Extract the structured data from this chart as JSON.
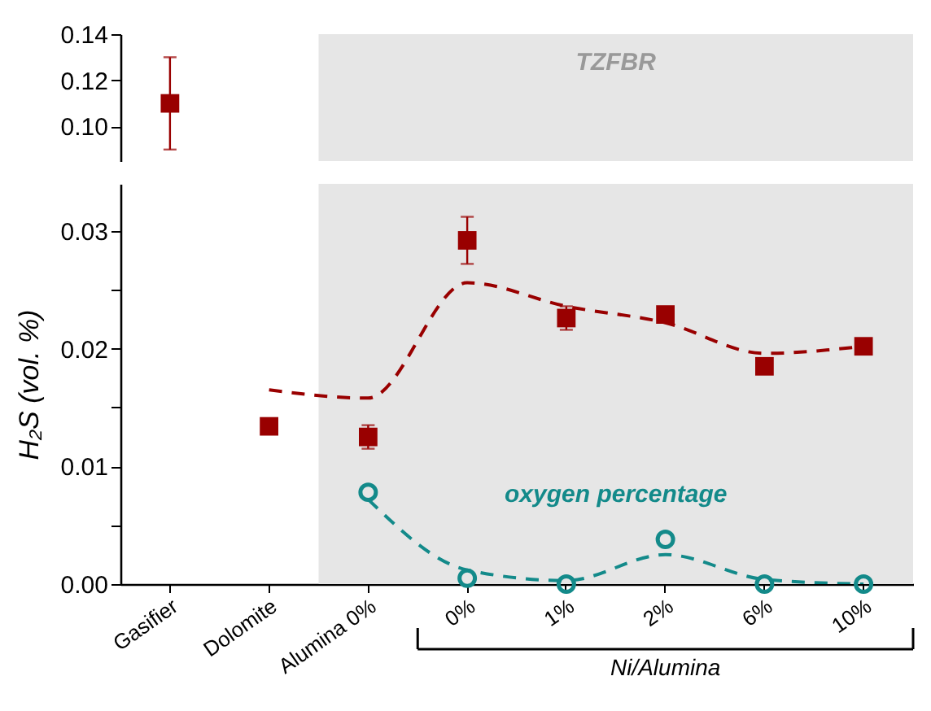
{
  "chart_data": [
    {
      "type": "scatter",
      "categories": [
        "Gasifier",
        "Dolomite",
        "Alumina 0%",
        "0%",
        "1%",
        "2%",
        "6%",
        "10%"
      ],
      "ylim": [
        0.085,
        0.14
      ],
      "yticks": [
        {
          "value": 0.1,
          "label": "0.10"
        },
        0.12,
        0.14
      ],
      "tick_labels": "y",
      "bands": [
        {
          "axis": "x",
          "from": "Alumina 0%",
          "to": "10%",
          "label": "TZFBR",
          "color": "#e6e6e6"
        }
      ],
      "series": [
        {
          "color": "#990000",
          "marker": "square",
          "values": [
            0.11,
            null,
            null,
            null,
            null,
            null,
            null,
            null
          ],
          "errors": [
            0.02,
            null,
            null,
            null,
            null,
            null,
            null,
            null
          ]
        }
      ]
    },
    {
      "type": "scatter",
      "categories": [
        "Gasifier",
        "Dolomite",
        "Alumina 0%",
        "0%",
        "1%",
        "2%",
        "6%",
        "10%"
      ],
      "ylabel": "H₂S (vol. %)",
      "ylim": [
        0,
        0.034
      ],
      "yticks": [
        {
          "value": 0,
          "label": "0.00"
        },
        {
          "value": 0.005,
          "label": null
        },
        0.01,
        {
          "value": 0.015,
          "label": null
        },
        0.02,
        {
          "value": 0.025,
          "label": null
        },
        0.03
      ],
      "bands": [
        {
          "axis": "x",
          "from": "Alumina 0%",
          "to": "10%",
          "color": "#e6e6e6"
        }
      ],
      "annotations": [
        "Ni/Alumina"
      ],
      "series": [
        {
          "type": "line",
          "color": "#990000",
          "line_style": "dashed",
          "values": [
            null,
            0.0165,
            0.0158,
            0.0256,
            0.0236,
            0.0222,
            0.0196,
            0.0202
          ]
        },
        {
          "color": "#990000",
          "marker": "square",
          "values": [
            null,
            0.0134,
            0.0125,
            0.0292,
            0.0226,
            0.0229,
            0.0185,
            0.0202
          ],
          "errors": [
            null,
            null,
            0.001,
            0.002,
            0.001,
            null,
            null,
            null
          ]
        },
        {
          "type": "line",
          "color": "#138a8a",
          "line_style": "dashed",
          "values": [
            null,
            null,
            0.0072,
            0.0012,
            0.0003,
            0.0025,
            0.0004,
            0
          ]
        },
        {
          "name": "oxygen percentage",
          "color": "#138a8a",
          "marker": "circle",
          "values": [
            null,
            null,
            0.0078,
            0.0005,
            0,
            0.0038,
            0,
            0
          ]
        }
      ]
    }
  ]
}
